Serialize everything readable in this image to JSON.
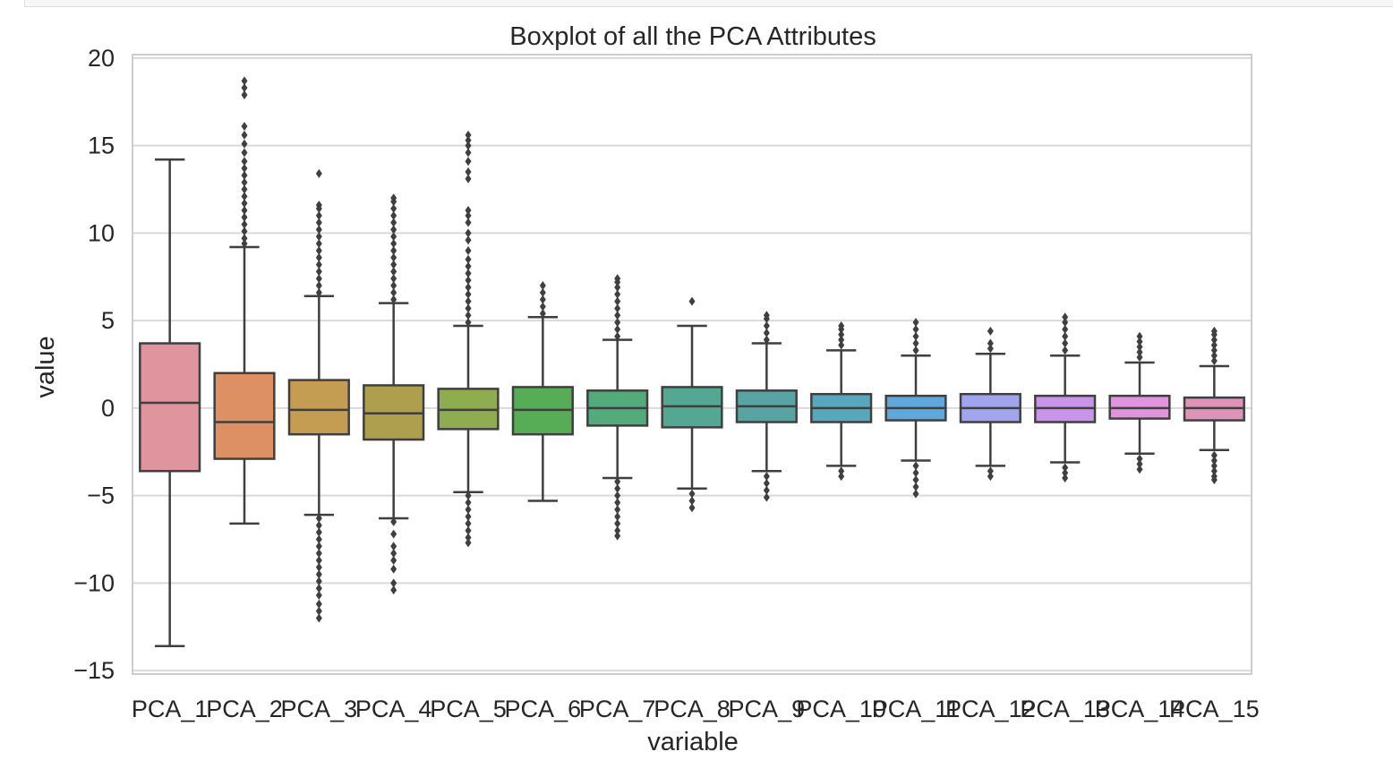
{
  "chart_data": {
    "type": "boxplot",
    "title": "Boxplot of all the PCA  Attributes",
    "xlabel": "variable",
    "ylabel": "value",
    "ylim": [
      -15.2,
      20.2
    ],
    "yticks": [
      20,
      15,
      10,
      5,
      0,
      -5,
      -10,
      -15
    ],
    "ytick_labels": [
      "20",
      "15",
      "10",
      "5",
      "0",
      "−5",
      "−10",
      "−15"
    ],
    "grid": "horizontal",
    "categories": [
      "PCA_1",
      "PCA_2",
      "PCA_3",
      "PCA_4",
      "PCA_5",
      "PCA_6",
      "PCA_7",
      "PCA_8",
      "PCA_9",
      "PCA_10",
      "PCA_11",
      "PCA_12",
      "PCA_13",
      "PCA_14",
      "PCA_15"
    ],
    "series": [
      {
        "category": "PCA_1",
        "color": "#e0949d",
        "whisker_low": -13.6,
        "q1": -3.6,
        "median": 0.3,
        "q3": 3.7,
        "whisker_high": 14.2,
        "outliers_low": [],
        "outliers_high": []
      },
      {
        "category": "PCA_2",
        "color": "#dd9063",
        "whisker_low": -6.6,
        "q1": -2.9,
        "median": -0.8,
        "q3": 2.0,
        "whisker_high": 9.2,
        "outliers_low": [],
        "outliers_high": [
          9.4,
          9.7,
          10.1,
          10.5,
          10.9,
          11.3,
          11.7,
          12.1,
          12.5,
          12.9,
          13.3,
          13.7,
          14.1,
          14.6,
          15.1,
          15.6,
          16.1,
          17.9,
          18.3,
          18.7
        ]
      },
      {
        "category": "PCA_3",
        "color": "#c49d52",
        "whisker_low": -6.1,
        "q1": -1.5,
        "median": -0.1,
        "q3": 1.6,
        "whisker_high": 6.4,
        "outliers_low": [
          -6.3,
          -6.7,
          -7.1,
          -7.5,
          -7.9,
          -8.3,
          -8.7,
          -9.1,
          -9.5,
          -9.9,
          -10.3,
          -10.7,
          -11.2,
          -11.6,
          -12.0
        ],
        "outliers_high": [
          6.6,
          7.0,
          7.4,
          7.8,
          8.2,
          8.6,
          9.0,
          9.4,
          9.8,
          10.2,
          10.6,
          11.0,
          11.4,
          11.6,
          13.4
        ]
      },
      {
        "category": "PCA_4",
        "color": "#ae9f4f",
        "whisker_low": -6.3,
        "q1": -1.8,
        "median": -0.3,
        "q3": 1.3,
        "whisker_high": 6.0,
        "outliers_low": [
          -6.5,
          -7.2,
          -7.9,
          -8.3,
          -8.7,
          -9.2,
          -10.0,
          -10.4
        ],
        "outliers_high": [
          6.2,
          6.6,
          7.0,
          7.4,
          7.8,
          8.2,
          8.6,
          9.0,
          9.4,
          9.8,
          10.2,
          10.6,
          11.0,
          11.4,
          11.8,
          12.0
        ]
      },
      {
        "category": "PCA_5",
        "color": "#8fac50",
        "whisker_low": -4.8,
        "q1": -1.2,
        "median": -0.1,
        "q3": 1.1,
        "whisker_high": 4.7,
        "outliers_low": [
          -5.0,
          -5.4,
          -5.8,
          -6.2,
          -6.6,
          -7.0,
          -7.4,
          -7.7
        ],
        "outliers_high": [
          4.9,
          5.3,
          5.7,
          6.1,
          6.5,
          6.9,
          7.3,
          7.7,
          8.1,
          8.5,
          9.0,
          9.6,
          10.0,
          10.6,
          11.0,
          11.3,
          13.1,
          13.5,
          14.1,
          14.6,
          15.0,
          15.3,
          15.6
        ]
      },
      {
        "category": "PCA_6",
        "color": "#57ad55",
        "whisker_low": -5.3,
        "q1": -1.5,
        "median": -0.1,
        "q3": 1.2,
        "whisker_high": 5.2,
        "outliers_low": [],
        "outliers_high": [
          5.4,
          5.8,
          6.2,
          6.6,
          7.0
        ]
      },
      {
        "category": "PCA_7",
        "color": "#53ab7c",
        "whisker_low": -4.0,
        "q1": -1.0,
        "median": 0.0,
        "q3": 1.0,
        "whisker_high": 3.9,
        "outliers_low": [
          -4.2,
          -4.6,
          -5.0,
          -5.4,
          -5.8,
          -6.2,
          -6.6,
          -7.0,
          -7.3
        ],
        "outliers_high": [
          4.1,
          4.5,
          4.9,
          5.3,
          5.7,
          6.1,
          6.5,
          6.9,
          7.2,
          7.4
        ]
      },
      {
        "category": "PCA_8",
        "color": "#54a792",
        "whisker_low": -4.6,
        "q1": -1.1,
        "median": 0.1,
        "q3": 1.2,
        "whisker_high": 4.7,
        "outliers_low": [
          -4.9,
          -5.3,
          -5.7
        ],
        "outliers_high": [
          6.1
        ]
      },
      {
        "category": "PCA_9",
        "color": "#56a5a2",
        "whisker_low": -3.6,
        "q1": -0.8,
        "median": 0.1,
        "q3": 1.0,
        "whisker_high": 3.7,
        "outliers_low": [
          -3.9,
          -4.3,
          -4.7,
          -5.1
        ],
        "outliers_high": [
          3.9,
          4.3,
          4.7,
          5.1,
          5.3
        ]
      },
      {
        "category": "PCA_10",
        "color": "#58a7bd",
        "whisker_low": -3.3,
        "q1": -0.8,
        "median": 0.0,
        "q3": 0.8,
        "whisker_high": 3.3,
        "outliers_low": [
          -3.6,
          -3.9
        ],
        "outliers_high": [
          3.6,
          3.9,
          4.2,
          4.5,
          4.7
        ]
      },
      {
        "category": "PCA_11",
        "color": "#5ea8dd",
        "whisker_low": -3.0,
        "q1": -0.7,
        "median": 0.0,
        "q3": 0.7,
        "whisker_high": 3.0,
        "outliers_low": [
          -3.3,
          -3.7,
          -4.1,
          -4.5,
          -4.9
        ],
        "outliers_high": [
          3.3,
          3.7,
          4.1,
          4.5,
          4.9
        ]
      },
      {
        "category": "PCA_12",
        "color": "#a1a5ee",
        "whisker_low": -3.3,
        "q1": -0.8,
        "median": 0.0,
        "q3": 0.8,
        "whisker_high": 3.1,
        "outliers_low": [
          -3.6,
          -3.9
        ],
        "outliers_high": [
          3.4,
          3.7,
          4.4
        ]
      },
      {
        "category": "PCA_13",
        "color": "#c895ea",
        "whisker_low": -3.1,
        "q1": -0.8,
        "median": 0.0,
        "q3": 0.7,
        "whisker_high": 3.0,
        "outliers_low": [
          -3.4,
          -3.7,
          -4.0
        ],
        "outliers_high": [
          3.3,
          3.7,
          4.1,
          4.5,
          4.9,
          5.2
        ]
      },
      {
        "category": "PCA_14",
        "color": "#e193de",
        "whisker_low": -2.6,
        "q1": -0.6,
        "median": 0.0,
        "q3": 0.7,
        "whisker_high": 2.6,
        "outliers_low": [
          -2.9,
          -3.2,
          -3.5
        ],
        "outliers_high": [
          2.9,
          3.2,
          3.5,
          3.8,
          4.1
        ]
      },
      {
        "category": "PCA_15",
        "color": "#e093b8",
        "whisker_low": -2.4,
        "q1": -0.7,
        "median": 0.0,
        "q3": 0.6,
        "whisker_high": 2.4,
        "outliers_low": [
          -2.7,
          -3.0,
          -3.3,
          -3.6,
          -3.9,
          -4.1
        ],
        "outliers_high": [
          2.7,
          3.0,
          3.3,
          3.6,
          3.9,
          4.2,
          4.4
        ]
      }
    ]
  }
}
